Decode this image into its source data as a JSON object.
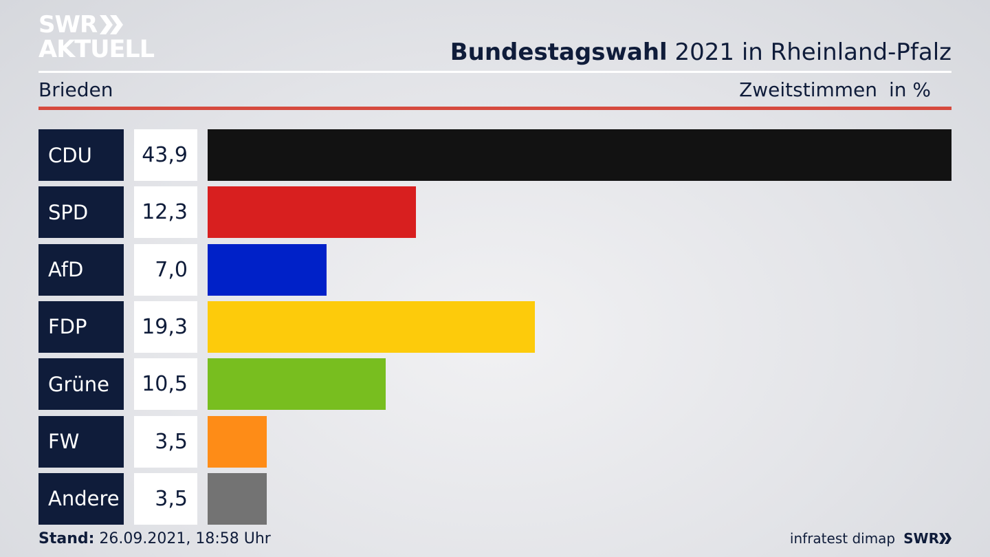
{
  "header": {
    "logo_line1": "SWR",
    "logo_line2": "AKTUELL",
    "title_bold": "Bundestagswahl",
    "title_rest": " 2021 in Rheinland-Pfalz",
    "location": "Brieden",
    "metric": "Zweitstimmen",
    "unit": "in %"
  },
  "chart_data": {
    "type": "bar",
    "orientation": "horizontal",
    "categories": [
      "CDU",
      "SPD",
      "AfD",
      "FDP",
      "Grüne",
      "FW",
      "Andere"
    ],
    "values": [
      43.9,
      12.3,
      7.0,
      19.3,
      10.5,
      3.5,
      3.5
    ],
    "value_labels": [
      "43,9",
      "12,3",
      "7,0",
      "19,3",
      "10,5",
      "3,5",
      "3,5"
    ],
    "colors": [
      "#121212",
      "#d81f1f",
      "#0021c8",
      "#fdcb0b",
      "#78be1f",
      "#fe8c17",
      "#737373"
    ],
    "xlim": [
      0,
      43.9
    ],
    "grid": false
  },
  "footer": {
    "stand_label": "Stand:",
    "stand_value": " 26.09.2021, 18:58 Uhr",
    "source": "infratest dimap",
    "brand": "SWR"
  }
}
